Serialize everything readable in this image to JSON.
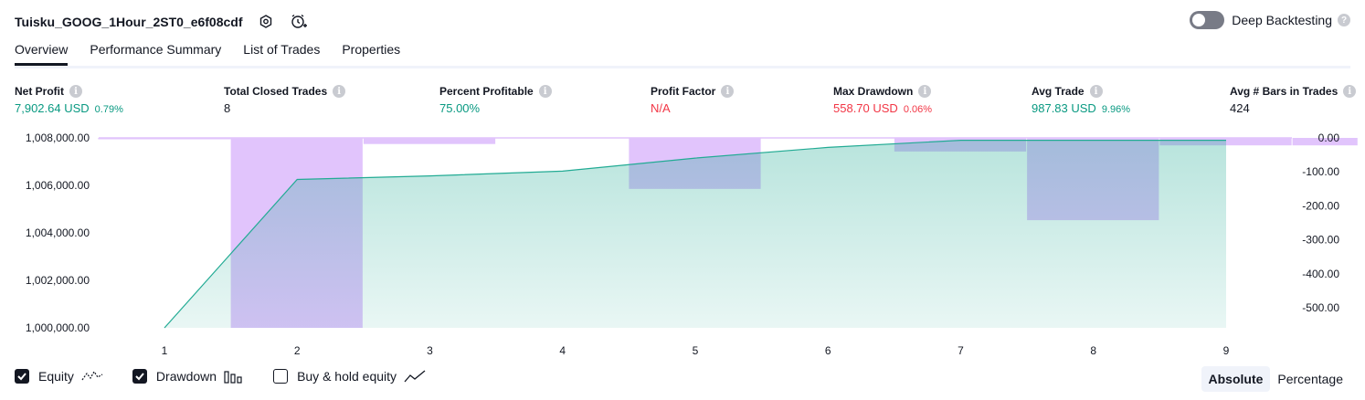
{
  "header": {
    "strategy_name": "Tuisku_GOOG_1Hour_2ST0_e6f08cdf",
    "icons": [
      "settings-icon",
      "add-alert-icon"
    ],
    "deep_backtesting": {
      "label": "Deep Backtesting",
      "enabled": false,
      "help": "?"
    }
  },
  "tabs": [
    {
      "label": "Overview",
      "active": true
    },
    {
      "label": "Performance Summary",
      "active": false
    },
    {
      "label": "List of Trades",
      "active": false
    },
    {
      "label": "Properties",
      "active": false
    }
  ],
  "metrics": {
    "info_glyph": "i",
    "net_profit": {
      "label": "Net Profit",
      "value": "7,902.64 USD",
      "pct": "0.79%"
    },
    "total_closed_trades": {
      "label": "Total Closed Trades",
      "value": "8"
    },
    "percent_profitable": {
      "label": "Percent Profitable",
      "value": "75.00%"
    },
    "profit_factor": {
      "label": "Profit Factor",
      "value": "N/A"
    },
    "max_drawdown": {
      "label": "Max Drawdown",
      "value": "558.70 USD",
      "pct": "0.06%"
    },
    "avg_trade": {
      "label": "Avg Trade",
      "value": "987.83 USD",
      "pct": "9.96%"
    },
    "avg_bars": {
      "label": "Avg # Bars in Trades",
      "value": "424"
    }
  },
  "colors": {
    "positive": "#089981",
    "negative": "#f23645",
    "equity_line": "#22ab94",
    "drawdown_bar": "#e1c4fc"
  },
  "chart_data": {
    "type": "area",
    "x": [
      1,
      2,
      3,
      4,
      5,
      6,
      7,
      8,
      9
    ],
    "xticks": [
      "1",
      "2",
      "3",
      "4",
      "5",
      "6",
      "7",
      "8",
      "9"
    ],
    "y_left_ticks": [
      "1,008,000.00",
      "1,006,000.00",
      "1,004,000.00",
      "1,002,000.00",
      "1,000,000.00"
    ],
    "y_left_tick_values": [
      1008000,
      1006000,
      1004000,
      1002000,
      1000000
    ],
    "y_left_range": [
      1000000,
      1008000
    ],
    "y_right_ticks": [
      "0.00",
      "-100.00",
      "-200.00",
      "-300.00",
      "-400.00",
      "-500.00"
    ],
    "y_right_tick_values": [
      0,
      -100,
      -200,
      -300,
      -400,
      -500
    ],
    "y_right_range": [
      -558.7,
      0
    ],
    "series": [
      {
        "name": "Equity",
        "kind": "area-line",
        "axis": "left",
        "values": [
          1000000,
          1006250,
          1006400,
          1006600,
          1007150,
          1007600,
          1007900,
          1007900,
          1007900
        ]
      },
      {
        "name": "Drawdown",
        "kind": "bar",
        "axis": "right",
        "values": [
          null,
          -558.7,
          -18,
          null,
          -150,
          null,
          -40,
          -242,
          -22
        ]
      }
    ],
    "extra_drawdown_strip": [
      {
        "x0": 0.5,
        "x1": 1.5,
        "value": -4
      },
      {
        "x0": 9.5,
        "x1": 9.99,
        "value": -22
      }
    ],
    "grid": false
  },
  "legend": {
    "items": [
      {
        "label": "Equity",
        "checked": true,
        "icon": "equity-line-icon"
      },
      {
        "label": "Drawdown",
        "checked": true,
        "icon": "drawdown-bars-icon"
      },
      {
        "label": "Buy & hold equity",
        "checked": false,
        "icon": "buy-hold-line-icon"
      }
    ]
  },
  "scale": {
    "options": [
      "Absolute",
      "Percentage"
    ],
    "selected": "Absolute"
  }
}
